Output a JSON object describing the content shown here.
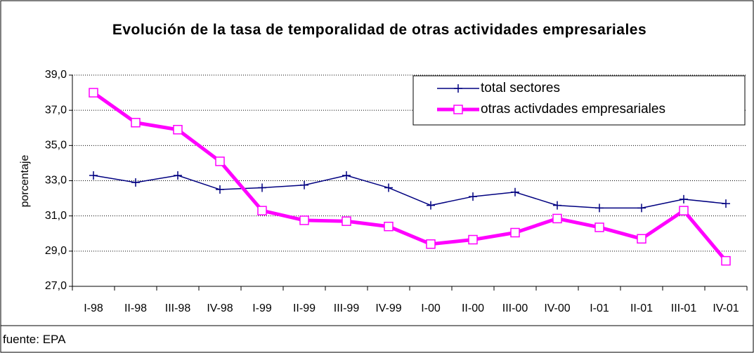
{
  "chart_data": {
    "type": "line",
    "title": "Evolución de la tasa de temporalidad de otras actividades empresariales",
    "y_label": "porcentaje",
    "source": "fuente: EPA",
    "categories": [
      "I-98",
      "II-98",
      "III-98",
      "IV-98",
      "I-99",
      "II-99",
      "III-99",
      "IV-99",
      "I-00",
      "II-00",
      "III-00",
      "IV-00",
      "I-01",
      "II-01",
      "III-01",
      "IV-01"
    ],
    "series": [
      {
        "name": "total sectores",
        "color": "#000080",
        "values": [
          33.3,
          32.9,
          33.3,
          32.5,
          32.6,
          32.75,
          33.3,
          32.6,
          31.6,
          32.1,
          32.35,
          31.6,
          31.45,
          31.45,
          31.95,
          31.7
        ]
      },
      {
        "name": "otras activdades empresariales",
        "color": "#ff00ff",
        "values": [
          38.0,
          36.3,
          35.9,
          34.1,
          31.3,
          30.75,
          30.7,
          30.4,
          29.4,
          29.65,
          30.05,
          30.85,
          30.35,
          29.7,
          31.3,
          28.45
        ]
      }
    ],
    "ylim": [
      27,
      39
    ],
    "yticks": [
      {
        "value": 27,
        "label": "27,0"
      },
      {
        "value": 29,
        "label": "29,0"
      },
      {
        "value": 31,
        "label": "31,0"
      },
      {
        "value": 33,
        "label": "33,0"
      },
      {
        "value": 35,
        "label": "35,0"
      },
      {
        "value": 37,
        "label": "37,0"
      },
      {
        "value": 39,
        "label": "39,0"
      }
    ],
    "grid": true,
    "legend": "upper right"
  }
}
